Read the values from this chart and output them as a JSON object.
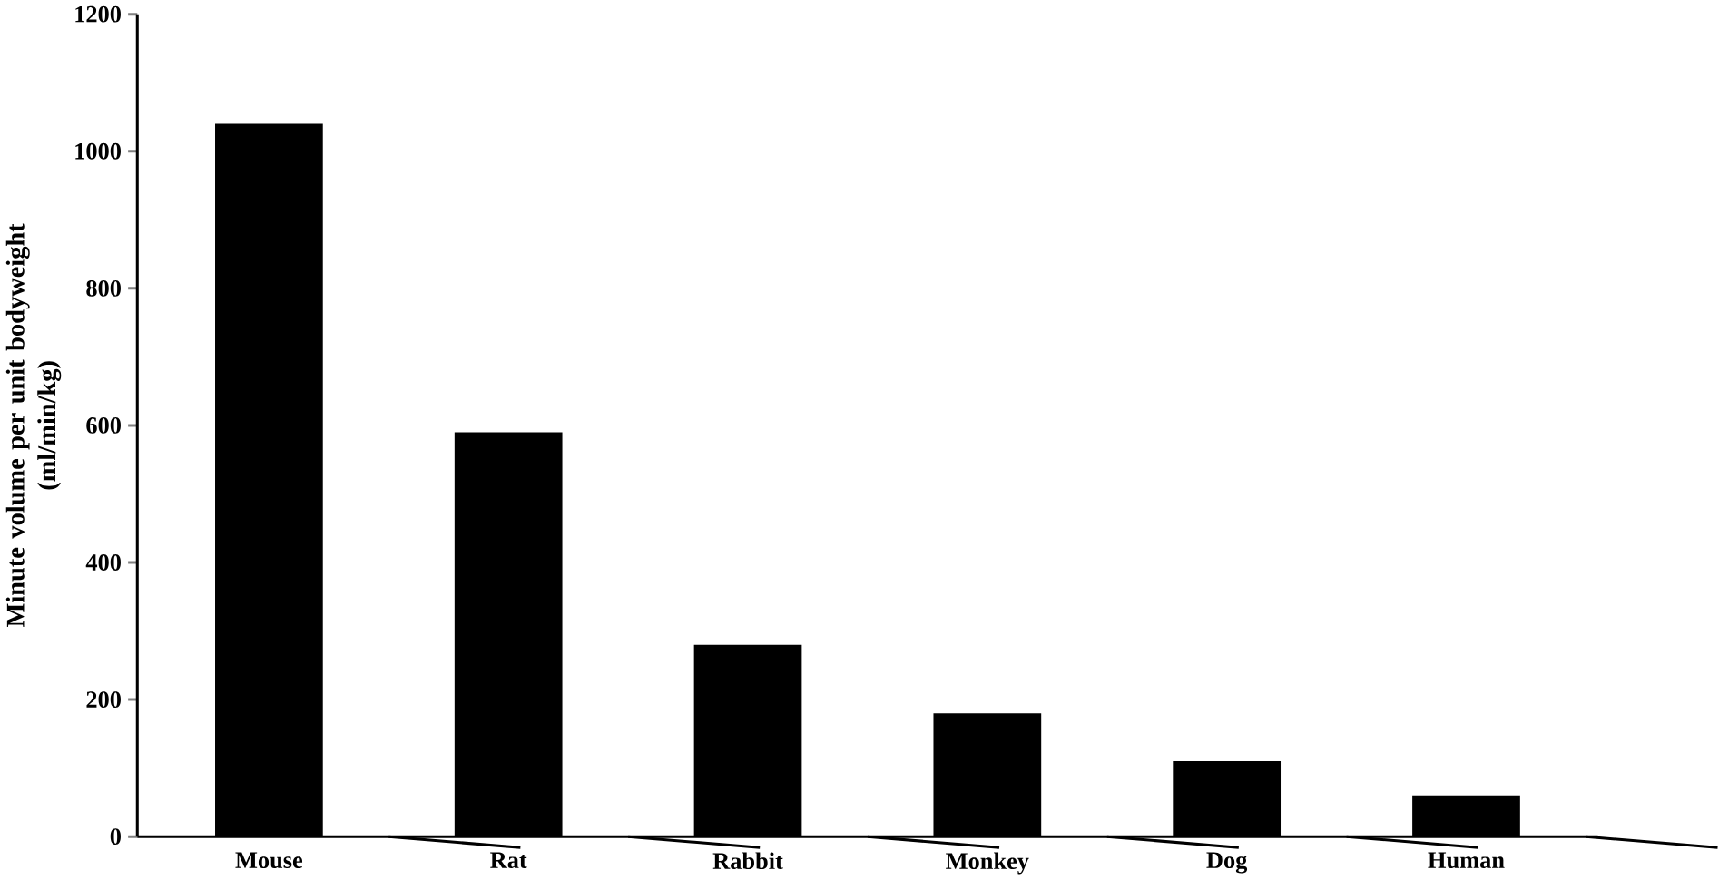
{
  "chart_data": {
    "type": "bar",
    "ylabel": "Minute volume per unit bodyweight\n(ml/min/kg)",
    "categories": [
      "Mouse",
      "Rat",
      "Rabbit",
      "Monkey",
      "Dog",
      "Human"
    ],
    "values": [
      1040,
      590,
      280,
      180,
      110,
      60
    ],
    "color": "#000000",
    "ylim": [
      0,
      1200
    ],
    "yticks": [
      0,
      200,
      400,
      600,
      800,
      1000,
      1200
    ],
    "grid": false
  }
}
